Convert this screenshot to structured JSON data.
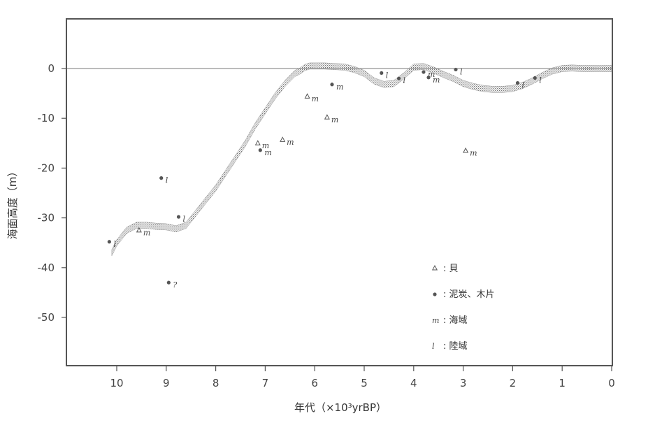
{
  "chart_data": {
    "type": "scatter",
    "xlabel": "年代（×10³yrBP）",
    "ylabel": "海面高度（m）",
    "xlim": [
      11.0,
      0
    ],
    "ylim": [
      -60,
      10
    ],
    "x_ticks": [
      10,
      9,
      8,
      7,
      6,
      5,
      4,
      3,
      2,
      1,
      0
    ],
    "y_ticks": [
      0,
      -10,
      -20,
      -30,
      -40,
      -50
    ],
    "reference_line_y": 0,
    "sea_level_band": {
      "x": [
        10.1,
        10.0,
        9.8,
        9.6,
        9.4,
        9.2,
        9.0,
        8.8,
        8.6,
        8.4,
        8.2,
        8.0,
        7.8,
        7.6,
        7.4,
        7.2,
        7.0,
        6.8,
        6.6,
        6.4,
        6.3,
        6.2,
        6.1,
        6.0,
        5.8,
        5.6,
        5.4,
        5.2,
        5.0,
        4.8,
        4.6,
        4.4,
        4.2,
        4.0,
        3.8,
        3.6,
        3.4,
        3.2,
        3.0,
        2.8,
        2.6,
        2.4,
        2.2,
        2.0,
        1.8,
        1.6,
        1.4,
        1.2,
        1.0,
        0.8,
        0.6,
        0.4,
        0.2,
        0.0
      ],
      "y": [
        -37.0,
        -35.0,
        -32.5,
        -31.5,
        -31.5,
        -31.7,
        -31.8,
        -32.2,
        -31.5,
        -29.0,
        -26.5,
        -24.0,
        -21.0,
        -18.0,
        -15.0,
        -11.5,
        -8.5,
        -5.5,
        -3.0,
        -1.0,
        -0.5,
        0.2,
        0.5,
        0.5,
        0.5,
        0.4,
        0.3,
        -0.2,
        -1.0,
        -2.5,
        -3.2,
        -3.0,
        -1.5,
        0.3,
        0.4,
        -0.3,
        -1.2,
        -2.0,
        -3.0,
        -3.6,
        -4.0,
        -4.2,
        -4.2,
        -4.0,
        -3.4,
        -2.5,
        -1.4,
        -0.5,
        0.0,
        0.1,
        0.0,
        0.0,
        0.0,
        0.0
      ]
    },
    "series": [
      {
        "name": "貝",
        "marker": "triangle",
        "color": "#555555",
        "points": [
          {
            "x": 9.55,
            "y": -32.5,
            "tag": "m"
          },
          {
            "x": 7.15,
            "y": -15.0,
            "tag": "m"
          },
          {
            "x": 6.65,
            "y": -14.3,
            "tag": "m"
          },
          {
            "x": 6.15,
            "y": -5.6,
            "tag": "m"
          },
          {
            "x": 5.75,
            "y": -9.8,
            "tag": "m"
          },
          {
            "x": 2.95,
            "y": -16.5,
            "tag": "m"
          }
        ]
      },
      {
        "name": "泥炭、木片",
        "marker": "dot",
        "color": "#555555",
        "points": [
          {
            "x": 10.15,
            "y": -34.8,
            "tag": "l"
          },
          {
            "x": 9.1,
            "y": -22.0,
            "tag": "l"
          },
          {
            "x": 8.95,
            "y": -43.0,
            "tag": "?"
          },
          {
            "x": 8.75,
            "y": -29.8,
            "tag": "l"
          },
          {
            "x": 7.1,
            "y": -16.4,
            "tag": "m"
          },
          {
            "x": 5.65,
            "y": -3.2,
            "tag": "m"
          },
          {
            "x": 4.65,
            "y": -0.9,
            "tag": "l"
          },
          {
            "x": 4.3,
            "y": -2.0,
            "tag": "l"
          },
          {
            "x": 3.8,
            "y": -0.7,
            "tag": "m"
          },
          {
            "x": 3.7,
            "y": -1.8,
            "tag": "m"
          },
          {
            "x": 3.15,
            "y": -0.2,
            "tag": "l"
          },
          {
            "x": 1.9,
            "y": -2.9,
            "tag": "l"
          },
          {
            "x": 1.55,
            "y": -1.9,
            "tag": "l"
          }
        ]
      }
    ],
    "legend": [
      {
        "symbol": "△",
        "text": ": 貝"
      },
      {
        "symbol": "●",
        "text": ": 泥炭、木片"
      },
      {
        "symbol": "m",
        "text": ": 海域"
      },
      {
        "symbol": "l",
        "text": ": 陸域"
      }
    ],
    "legend_position": "bottom-right",
    "grid": false
  }
}
